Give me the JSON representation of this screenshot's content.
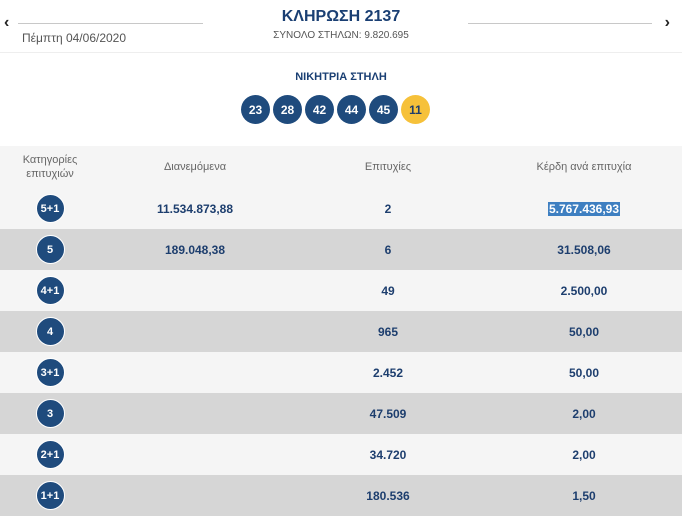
{
  "header": {
    "prev_icon": "‹",
    "next_icon": "›",
    "date": "Πέμπτη 04/06/2020",
    "draw_title": "ΚΛΗΡΩΣΗ 2137",
    "total_columns": "ΣΥΝΟΛΟ ΣΤΗΛΩΝ: 9.820.695"
  },
  "winning": {
    "label": "ΝΙΚΗΤΡΙΑ ΣΤΗΛΗ",
    "numbers": [
      "23",
      "28",
      "42",
      "44",
      "45"
    ],
    "joker": "11",
    "colors": {
      "ball": "#1f4b7d",
      "joker": "#f6c13a"
    }
  },
  "table": {
    "headers": {
      "category": "Κατηγορίες επιτυχιών",
      "distributed": "Διανεμόμενα",
      "winners": "Επιτυχίες",
      "prize": "Κέρδη ανά επιτυχία"
    },
    "rows": [
      {
        "category": "5+1",
        "distributed": "11.534.873,88",
        "winners": "2",
        "prize": "5.767.436,93"
      },
      {
        "category": "5",
        "distributed": "189.048,38",
        "winners": "6",
        "prize": "31.508,06"
      },
      {
        "category": "4+1",
        "distributed": "",
        "winners": "49",
        "prize": "2.500,00"
      },
      {
        "category": "4",
        "distributed": "",
        "winners": "965",
        "prize": "50,00"
      },
      {
        "category": "3+1",
        "distributed": "",
        "winners": "2.452",
        "prize": "50,00"
      },
      {
        "category": "3",
        "distributed": "",
        "winners": "47.509",
        "prize": "2,00"
      },
      {
        "category": "2+1",
        "distributed": "",
        "winners": "34.720",
        "prize": "2,00"
      },
      {
        "category": "1+1",
        "distributed": "",
        "winners": "180.536",
        "prize": "1,50"
      }
    ]
  }
}
